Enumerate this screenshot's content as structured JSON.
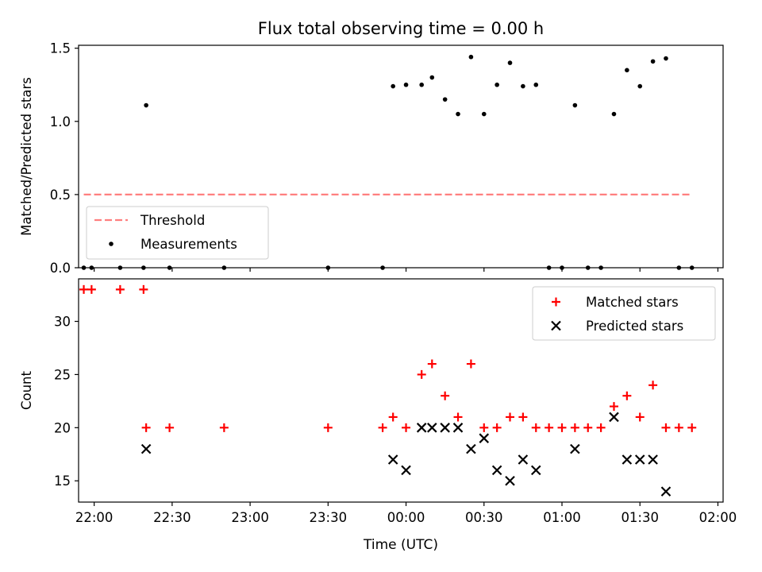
{
  "figure": {
    "title": "Flux total observing time = 0.00 h",
    "xlabel": "Time (UTC)"
  },
  "colors": {
    "threshold": "#ff7f7f",
    "measurements": "#000000",
    "matched": "#ff0000",
    "predicted": "#000000"
  },
  "chart_data": [
    {
      "type": "scatter",
      "panel": "top",
      "title": "Flux total observing time = 0.00 h",
      "xlabel": "",
      "ylabel": "Matched/Predicted stars",
      "xlim": [
        "21:54",
        "02:02"
      ],
      "ylim": [
        0,
        1.52
      ],
      "x_ticks": [
        "22:00",
        "22:30",
        "23:00",
        "23:30",
        "00:00",
        "00:30",
        "01:00",
        "01:30",
        "02:00"
      ],
      "y_ticks": [
        "0.0",
        "0.5",
        "1.0",
        "1.5"
      ],
      "legend": "lower-left",
      "series": [
        {
          "name": "Threshold",
          "style": "dashed-line",
          "x": [
            "21:56",
            "01:50"
          ],
          "y": [
            0.5,
            0.5
          ]
        },
        {
          "name": "Measurements",
          "style": "dot",
          "x": [
            "21:56",
            "21:59",
            "22:10",
            "22:19",
            "22:20",
            "22:29",
            "22:50",
            "23:30",
            "23:51",
            "23:55",
            "24:00",
            "24:06",
            "24:10",
            "24:15",
            "24:20",
            "24:25",
            "24:30",
            "24:35",
            "24:40",
            "24:45",
            "24:50",
            "24:55",
            "25:00",
            "25:05",
            "25:10",
            "25:15",
            "25:20",
            "25:25",
            "25:30",
            "25:35",
            "25:40",
            "25:45",
            "25:50"
          ],
          "y": [
            0,
            0,
            0,
            0,
            1.11,
            0,
            0,
            0,
            0,
            1.24,
            1.25,
            1.25,
            1.3,
            1.15,
            1.05,
            1.44,
            1.05,
            1.25,
            1.4,
            1.24,
            1.25,
            0,
            0,
            1.11,
            0,
            0,
            1.05,
            1.35,
            1.24,
            1.41,
            1.43,
            0,
            0
          ]
        }
      ]
    },
    {
      "type": "scatter",
      "panel": "bottom",
      "xlabel": "Time (UTC)",
      "ylabel": "Count",
      "xlim": [
        "21:54",
        "02:02"
      ],
      "ylim": [
        13,
        34
      ],
      "x_ticks": [
        "22:00",
        "22:30",
        "23:00",
        "23:30",
        "00:00",
        "00:30",
        "01:00",
        "01:30",
        "02:00"
      ],
      "y_ticks": [
        "15",
        "20",
        "25",
        "30"
      ],
      "legend": "upper-right",
      "series": [
        {
          "name": "Matched stars",
          "marker": "plus",
          "x": [
            "21:56",
            "21:59",
            "22:10",
            "22:19",
            "22:20",
            "22:29",
            "22:50",
            "23:30",
            "23:51",
            "23:55",
            "24:00",
            "24:06",
            "24:10",
            "24:15",
            "24:20",
            "24:25",
            "24:30",
            "24:35",
            "24:40",
            "24:45",
            "24:50",
            "24:55",
            "25:00",
            "25:05",
            "25:10",
            "25:15",
            "25:20",
            "25:25",
            "25:30",
            "25:35",
            "25:40",
            "25:45",
            "25:50"
          ],
          "y": [
            33,
            33,
            33,
            33,
            20,
            20,
            20,
            20,
            20,
            21,
            20,
            25,
            26,
            23,
            21,
            26,
            20,
            20,
            21,
            21,
            20,
            20,
            20,
            20,
            20,
            20,
            22,
            23,
            21,
            24,
            20,
            20,
            20
          ]
        },
        {
          "name": "Predicted stars",
          "marker": "x",
          "x": [
            "22:20",
            "23:55",
            "24:00",
            "24:06",
            "24:10",
            "24:15",
            "24:20",
            "24:25",
            "24:30",
            "24:35",
            "24:40",
            "24:45",
            "24:50",
            "25:05",
            "25:20",
            "25:25",
            "25:30",
            "25:35",
            "25:40"
          ],
          "y": [
            18,
            17,
            16,
            20,
            20,
            20,
            20,
            18,
            19,
            16,
            15,
            17,
            16,
            18,
            21,
            17,
            17,
            17,
            14
          ]
        }
      ]
    }
  ]
}
